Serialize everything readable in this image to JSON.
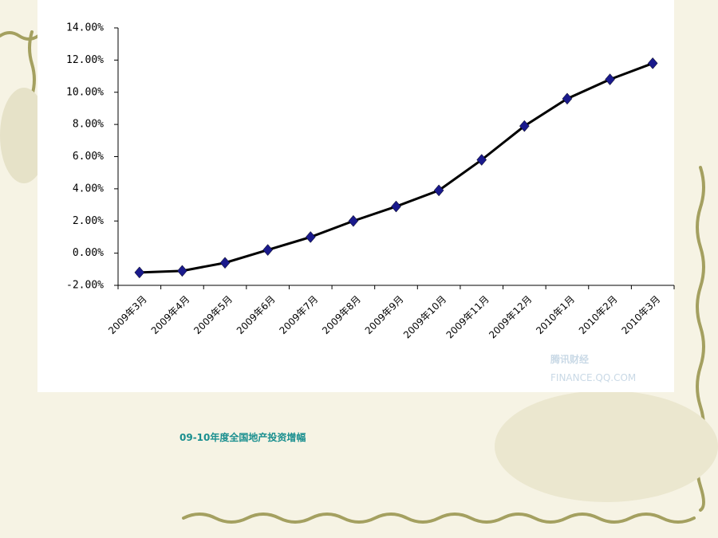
{
  "chart_data": {
    "type": "line",
    "title": "09-10年度全国地产投资增幅",
    "watermark": "腾讯财经",
    "watermark_url": "FINANCE.QQ.COM",
    "categories": [
      "2009年3月",
      "2009年4月",
      "2009年5月",
      "2009年6月",
      "2009年7月",
      "2009年8月",
      "2009年9月",
      "2009年10月",
      "2009年11月",
      "2009年12月",
      "2010年1月",
      "2010年2月",
      "2010年3月"
    ],
    "values": [
      -1.2,
      -1.1,
      -0.6,
      0.2,
      1.0,
      2.0,
      2.9,
      3.9,
      5.8,
      7.9,
      9.6,
      10.8,
      11.8
    ],
    "color": "#000000",
    "marker_color": "#1a1a8c",
    "ylim": [
      -2,
      14
    ],
    "yticks": [
      {
        "value": -2,
        "label": "-2.00%"
      },
      {
        "value": 0,
        "label": "0.00%"
      },
      {
        "value": 2,
        "label": "2.00%"
      },
      {
        "value": 4,
        "label": "4.00%"
      },
      {
        "value": 6,
        "label": "6.00%"
      },
      {
        "value": 8,
        "label": "8.00%"
      },
      {
        "value": 10,
        "label": "10.00%"
      },
      {
        "value": 12,
        "label": "12.00%"
      },
      {
        "value": 14,
        "label": "14.00%"
      }
    ]
  }
}
